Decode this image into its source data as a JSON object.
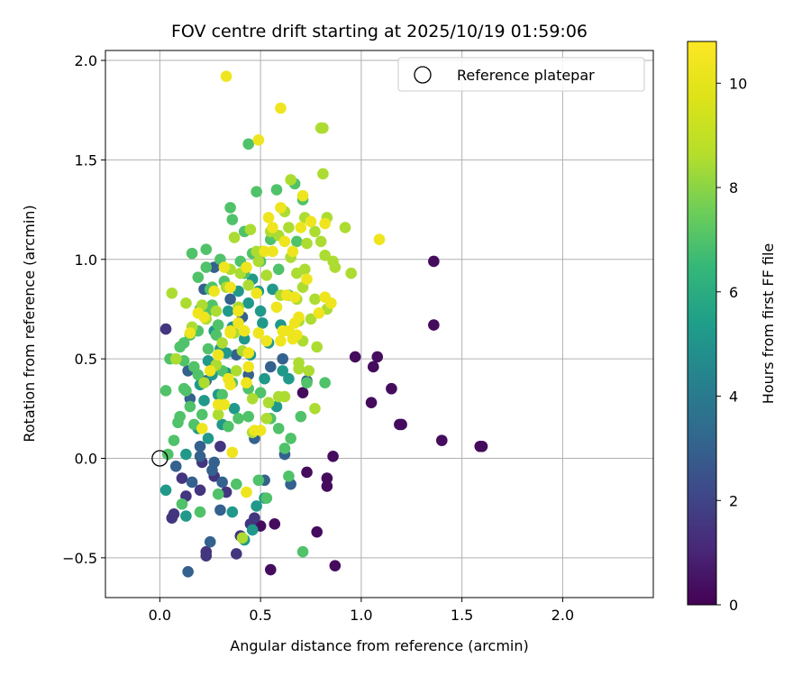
{
  "chart_data": {
    "type": "scatter",
    "title": "FOV centre drift starting at 2025/10/19 01:59:06",
    "xlabel": "Angular distance from reference (arcmin)",
    "ylabel": "Rotation from reference (arcmin)",
    "xlim": [
      -0.27,
      2.45
    ],
    "ylim": [
      -0.7,
      2.05
    ],
    "xticks": [
      0.0,
      0.5,
      1.0,
      1.5,
      2.0
    ],
    "xtick_labels": [
      "0.0",
      "0.5",
      "1.0",
      "1.5",
      "2.0"
    ],
    "yticks": [
      -0.5,
      0.0,
      0.5,
      1.0,
      1.5,
      2.0
    ],
    "ytick_labels": [
      "−0.5",
      "0.0",
      "0.5",
      "1.0",
      "1.5",
      "2.0"
    ],
    "grid": true,
    "legend": {
      "position": "top-right",
      "entries": [
        "Reference platepar"
      ]
    },
    "reference_point": {
      "x": 0.0,
      "y": 0.0
    },
    "colorbar": {
      "label": "Hours from first FF file",
      "colormap": "viridis",
      "range": [
        0,
        10.8
      ],
      "ticks": [
        0,
        2,
        4,
        6,
        8,
        10
      ],
      "tick_labels": [
        "0",
        "2",
        "4",
        "6",
        "8",
        "10"
      ]
    },
    "series": [
      {
        "name": "hours_0_1",
        "hours": 0.3,
        "points": [
          [
            1.36,
            0.99
          ],
          [
            1.36,
            0.67
          ],
          [
            0.97,
            0.51
          ],
          [
            1.08,
            0.51
          ],
          [
            1.06,
            0.46
          ],
          [
            1.15,
            0.35
          ],
          [
            1.05,
            0.28
          ],
          [
            1.19,
            0.17
          ],
          [
            1.2,
            0.17
          ],
          [
            1.4,
            0.09
          ],
          [
            1.59,
            0.06
          ],
          [
            1.6,
            0.06
          ],
          [
            0.86,
            0.01
          ],
          [
            0.73,
            -0.07
          ],
          [
            0.83,
            -0.1
          ],
          [
            0.83,
            -0.14
          ],
          [
            0.71,
            0.33
          ],
          [
            0.78,
            -0.37
          ],
          [
            0.87,
            -0.54
          ],
          [
            0.55,
            -0.56
          ],
          [
            0.57,
            -0.33
          ],
          [
            0.5,
            -0.34
          ]
        ]
      },
      {
        "name": "hours_1_2",
        "hours": 1.5,
        "points": [
          [
            0.03,
            0.65
          ],
          [
            0.11,
            -0.1
          ],
          [
            0.13,
            -0.19
          ],
          [
            0.2,
            -0.16
          ],
          [
            0.06,
            -0.3
          ],
          [
            0.07,
            -0.28
          ],
          [
            0.23,
            -0.47
          ],
          [
            0.23,
            -0.49
          ],
          [
            0.4,
            -0.39
          ],
          [
            0.45,
            -0.33
          ],
          [
            0.47,
            -0.3
          ],
          [
            0.27,
            -0.09
          ],
          [
            0.21,
            -0.02
          ],
          [
            0.38,
            -0.48
          ],
          [
            0.3,
            0.06
          ],
          [
            0.33,
            -0.17
          ]
        ]
      },
      {
        "name": "hours_2_4",
        "hours": 3.0,
        "points": [
          [
            0.14,
            -0.57
          ],
          [
            0.25,
            -0.42
          ],
          [
            0.3,
            -0.26
          ],
          [
            0.2,
            0.01
          ],
          [
            0.08,
            -0.04
          ],
          [
            0.16,
            -0.12
          ],
          [
            0.27,
            -0.02
          ],
          [
            0.31,
            -0.12
          ],
          [
            0.26,
            -0.06
          ],
          [
            0.2,
            0.06
          ],
          [
            0.52,
            -0.11
          ],
          [
            0.47,
            0.1
          ],
          [
            0.62,
            0.02
          ],
          [
            0.65,
            -0.13
          ],
          [
            0.14,
            0.44
          ],
          [
            0.22,
            0.85
          ],
          [
            0.27,
            0.96
          ],
          [
            0.35,
            0.8
          ],
          [
            0.41,
            0.71
          ],
          [
            0.38,
            0.52
          ],
          [
            0.44,
            0.42
          ],
          [
            0.55,
            0.46
          ],
          [
            0.61,
            0.5
          ],
          [
            0.73,
            0.39
          ],
          [
            0.23,
            0.39
          ],
          [
            0.15,
            0.3
          ]
        ]
      },
      {
        "name": "hours_4_6",
        "hours": 5.2,
        "points": [
          [
            0.13,
            -0.29
          ],
          [
            0.36,
            -0.27
          ],
          [
            0.42,
            -0.41
          ],
          [
            0.46,
            -0.36
          ],
          [
            0.52,
            -0.2
          ],
          [
            0.48,
            -0.24
          ],
          [
            0.31,
            0.17
          ],
          [
            0.37,
            0.25
          ],
          [
            0.24,
            0.49
          ],
          [
            0.33,
            0.53
          ],
          [
            0.42,
            0.6
          ],
          [
            0.52,
            0.4
          ],
          [
            0.58,
            0.26
          ],
          [
            0.64,
            0.4
          ],
          [
            0.29,
            0.32
          ],
          [
            0.26,
            0.42
          ],
          [
            0.19,
            0.15
          ],
          [
            0.33,
            0.43
          ],
          [
            0.51,
            0.68
          ],
          [
            0.39,
            0.84
          ],
          [
            0.56,
            0.85
          ],
          [
            0.6,
            0.67
          ],
          [
            0.46,
            0.9
          ],
          [
            0.49,
            0.84
          ],
          [
            0.13,
            0.02
          ],
          [
            0.03,
            -0.16
          ],
          [
            0.24,
            0.1
          ],
          [
            0.2,
            0.37
          ],
          [
            0.3,
            0.55
          ],
          [
            0.36,
            0.66
          ],
          [
            0.45,
            0.52
          ],
          [
            0.54,
            0.58
          ],
          [
            0.61,
            0.44
          ],
          [
            0.22,
            0.29
          ],
          [
            0.27,
            0.64
          ],
          [
            0.34,
            0.74
          ],
          [
            0.44,
            0.78
          ],
          [
            0.5,
            0.74
          ]
        ]
      },
      {
        "name": "hours_6_8",
        "hours": 7.0,
        "points": [
          [
            0.03,
            0.34
          ],
          [
            0.05,
            0.5
          ],
          [
            0.1,
            0.56
          ],
          [
            0.12,
            0.58
          ],
          [
            0.17,
            0.46
          ],
          [
            0.19,
            0.42
          ],
          [
            0.24,
            0.55
          ],
          [
            0.28,
            0.62
          ],
          [
            0.15,
            0.26
          ],
          [
            0.1,
            0.21
          ],
          [
            0.17,
            0.17
          ],
          [
            0.07,
            0.09
          ],
          [
            0.12,
            0.35
          ],
          [
            0.21,
            0.22
          ],
          [
            0.31,
            0.44
          ],
          [
            0.36,
            0.38
          ],
          [
            0.39,
            0.2
          ],
          [
            0.44,
            0.35
          ],
          [
            0.5,
            0.33
          ],
          [
            0.55,
            0.2
          ],
          [
            0.65,
            0.1
          ],
          [
            0.62,
            0.05
          ],
          [
            0.64,
            -0.09
          ],
          [
            0.53,
            -0.2
          ],
          [
            0.49,
            -0.11
          ],
          [
            0.38,
            -0.13
          ],
          [
            0.29,
            -0.18
          ],
          [
            0.2,
            -0.27
          ],
          [
            0.11,
            -0.23
          ],
          [
            0.04,
            0.02
          ],
          [
            0.64,
            0.82
          ],
          [
            0.59,
            0.95
          ],
          [
            0.67,
            1.38
          ],
          [
            0.71,
            1.3
          ],
          [
            0.68,
            1.09
          ],
          [
            0.58,
            1.35
          ],
          [
            0.55,
            1.1
          ],
          [
            0.44,
            1.58
          ],
          [
            0.48,
            1.34
          ],
          [
            0.36,
            1.2
          ],
          [
            0.35,
            1.26
          ],
          [
            0.23,
            1.05
          ],
          [
            0.16,
            1.03
          ],
          [
            0.19,
            0.91
          ],
          [
            0.26,
            0.77
          ],
          [
            0.23,
            0.73
          ],
          [
            0.32,
            0.89
          ],
          [
            0.4,
            0.99
          ],
          [
            0.46,
            1.03
          ],
          [
            0.5,
            0.99
          ],
          [
            0.25,
            0.85
          ],
          [
            0.29,
            0.67
          ],
          [
            0.42,
            0.93
          ],
          [
            0.31,
            0.32
          ],
          [
            0.34,
            0.16
          ],
          [
            0.44,
            0.21
          ],
          [
            0.59,
            0.15
          ],
          [
            0.7,
            0.21
          ],
          [
            0.73,
            0.38
          ],
          [
            0.82,
            0.38
          ],
          [
            0.71,
            -0.47
          ],
          [
            0.08,
            0.5
          ],
          [
            0.23,
            0.96
          ],
          [
            0.3,
            1.0
          ],
          [
            0.42,
            1.14
          ],
          [
            0.19,
            0.64
          ],
          [
            0.13,
            0.34
          ],
          [
            0.09,
            0.18
          ],
          [
            0.12,
            0.49
          ],
          [
            0.15,
            0.62
          ],
          [
            0.2,
            0.75
          ],
          [
            0.26,
            0.86
          ]
        ]
      },
      {
        "name": "hours_8_9_5",
        "hours": 8.5,
        "points": [
          [
            0.06,
            0.83
          ],
          [
            0.13,
            0.78
          ],
          [
            0.08,
            0.5
          ],
          [
            0.16,
            0.66
          ],
          [
            0.31,
            0.58
          ],
          [
            0.37,
            0.63
          ],
          [
            0.39,
            0.76
          ],
          [
            0.44,
            0.87
          ],
          [
            0.53,
            0.92
          ],
          [
            0.6,
            0.82
          ],
          [
            0.68,
            0.8
          ],
          [
            0.75,
            0.7
          ],
          [
            0.77,
            0.8
          ],
          [
            0.83,
            0.75
          ],
          [
            0.78,
            0.56
          ],
          [
            0.71,
            0.59
          ],
          [
            0.69,
            0.48
          ],
          [
            0.74,
            0.44
          ],
          [
            0.77,
            0.25
          ],
          [
            0.69,
            0.45
          ],
          [
            0.62,
            0.31
          ],
          [
            0.54,
            0.28
          ],
          [
            0.46,
            0.3
          ],
          [
            0.38,
            0.44
          ],
          [
            0.41,
            0.54
          ],
          [
            0.28,
            0.47
          ],
          [
            0.22,
            0.38
          ],
          [
            0.29,
            0.22
          ],
          [
            0.46,
            0.13
          ],
          [
            0.53,
            0.2
          ],
          [
            0.59,
            0.31
          ],
          [
            0.41,
            -0.4
          ],
          [
            0.68,
            0.93
          ],
          [
            0.72,
            0.95
          ],
          [
            0.65,
            1.4
          ],
          [
            0.62,
            1.24
          ],
          [
            0.64,
            1.16
          ],
          [
            0.72,
            1.21
          ],
          [
            0.77,
            1.14
          ],
          [
            0.81,
            1.43
          ],
          [
            0.81,
            1.66
          ],
          [
            0.8,
            1.66
          ],
          [
            0.87,
            0.96
          ],
          [
            0.95,
            0.93
          ],
          [
            0.92,
            1.16
          ],
          [
            0.83,
            1.21
          ],
          [
            0.8,
            1.09
          ],
          [
            0.82,
            1.02
          ],
          [
            0.86,
            0.99
          ],
          [
            0.73,
            1.08
          ],
          [
            0.65,
            1.01
          ],
          [
            0.59,
            1.12
          ],
          [
            0.55,
            1.14
          ],
          [
            0.51,
            1.04
          ],
          [
            0.48,
            1.04
          ],
          [
            0.37,
            1.11
          ],
          [
            0.45,
            1.15
          ],
          [
            0.49,
            0.99
          ],
          [
            0.4,
            0.93
          ],
          [
            0.35,
            0.95
          ],
          [
            0.33,
            0.86
          ],
          [
            0.28,
            0.74
          ],
          [
            0.23,
            0.7
          ],
          [
            0.21,
            0.77
          ],
          [
            0.69,
            0.69
          ],
          [
            0.71,
            0.86
          ]
        ]
      },
      {
        "name": "hours_9_5_11",
        "hours": 10.3,
        "points": [
          [
            0.33,
            1.92
          ],
          [
            0.6,
            1.76
          ],
          [
            0.49,
            1.6
          ],
          [
            0.71,
            1.32
          ],
          [
            0.6,
            1.26
          ],
          [
            0.54,
            1.21
          ],
          [
            0.56,
            1.16
          ],
          [
            0.7,
            1.16
          ],
          [
            0.75,
            1.19
          ],
          [
            0.82,
            1.18
          ],
          [
            1.09,
            1.1
          ],
          [
            0.66,
            1.04
          ],
          [
            0.62,
            1.09
          ],
          [
            0.56,
            1.04
          ],
          [
            0.52,
            1.04
          ],
          [
            0.43,
            0.96
          ],
          [
            0.32,
            0.96
          ],
          [
            0.35,
            0.86
          ],
          [
            0.39,
            0.74
          ],
          [
            0.48,
            0.83
          ],
          [
            0.58,
            0.76
          ],
          [
            0.63,
            0.82
          ],
          [
            0.67,
            0.81
          ],
          [
            0.73,
            0.9
          ],
          [
            0.82,
            0.81
          ],
          [
            0.85,
            0.78
          ],
          [
            0.79,
            0.73
          ],
          [
            0.69,
            0.71
          ],
          [
            0.61,
            0.64
          ],
          [
            0.66,
            0.6
          ],
          [
            0.53,
            0.59
          ],
          [
            0.49,
            0.63
          ],
          [
            0.42,
            0.64
          ],
          [
            0.35,
            0.63
          ],
          [
            0.29,
            0.52
          ],
          [
            0.22,
            0.71
          ],
          [
            0.19,
            0.73
          ],
          [
            0.15,
            0.63
          ],
          [
            0.27,
            0.84
          ],
          [
            0.39,
            0.68
          ],
          [
            0.44,
            0.53
          ],
          [
            0.44,
            0.46
          ],
          [
            0.35,
            0.37
          ],
          [
            0.34,
            0.4
          ],
          [
            0.25,
            0.44
          ],
          [
            0.29,
            0.27
          ],
          [
            0.32,
            0.27
          ],
          [
            0.47,
            0.14
          ],
          [
            0.5,
            0.14
          ],
          [
            0.6,
            0.59
          ],
          [
            0.64,
            0.64
          ],
          [
            0.43,
            0.38
          ],
          [
            0.36,
            0.03
          ],
          [
            0.43,
            -0.17
          ],
          [
            0.21,
            0.15
          ],
          [
            0.68,
            0.62
          ],
          [
            0.67,
            0.68
          ],
          [
            0.35,
            0.64
          ]
        ]
      }
    ]
  }
}
